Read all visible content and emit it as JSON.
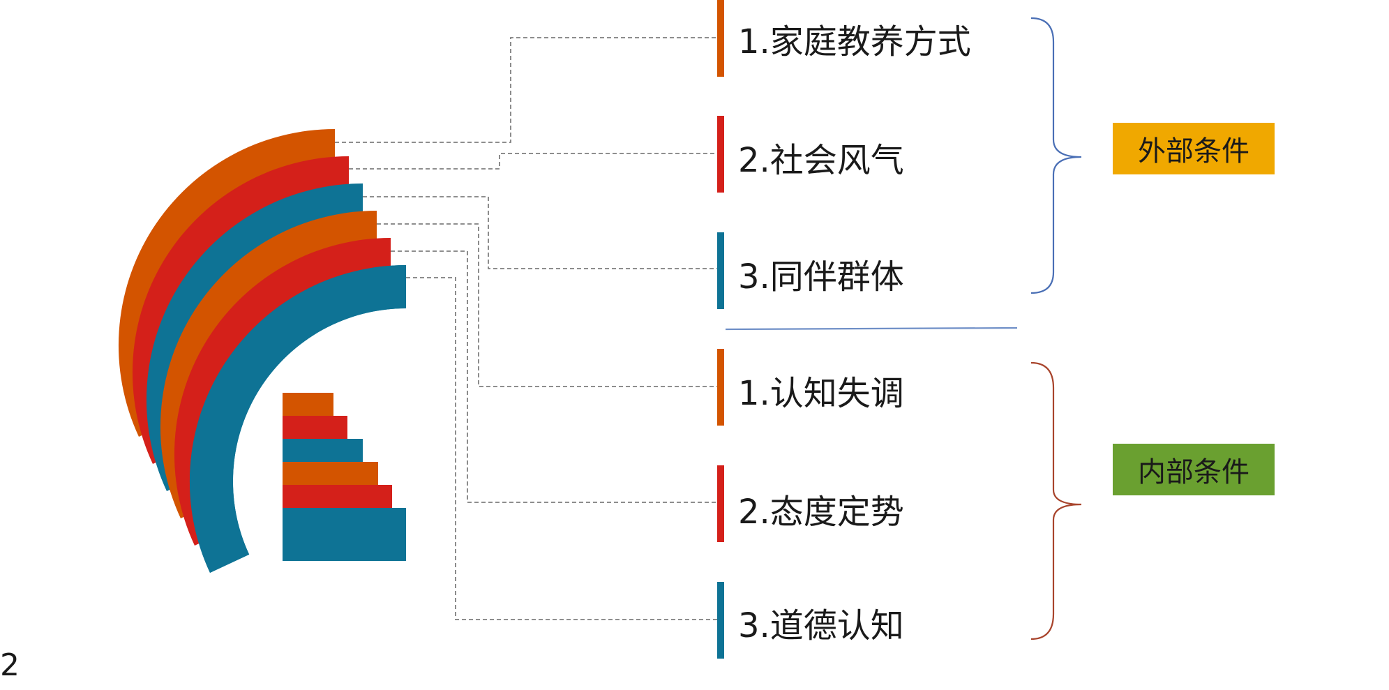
{
  "colors": {
    "orange": "#d35400",
    "red": "#d4201a",
    "blue": "#0e7395",
    "connector": "#7f7f7f",
    "external_bracket": "#4a6fb5",
    "internal_bracket": "#a8442c",
    "divider": "#6f8fc7",
    "external_tag_bg": "#f0a800",
    "internal_tag_bg": "#6aa030"
  },
  "groups": {
    "external": {
      "tag": "外部条件",
      "items": [
        {
          "label": "1.家庭教养方式",
          "color": "orange"
        },
        {
          "label": "2.社会风气",
          "color": "red"
        },
        {
          "label": "3.同伴群体",
          "color": "blue"
        }
      ]
    },
    "internal": {
      "tag": "内部条件",
      "items": [
        {
          "label": "1.认知失调",
          "color": "orange"
        },
        {
          "label": "2.态度定势",
          "color": "red"
        },
        {
          "label": "3.道德认知",
          "color": "blue"
        }
      ]
    }
  },
  "page_number": "2",
  "decor": {
    "arc_sequence": [
      "orange",
      "red",
      "blue",
      "orange",
      "red",
      "blue"
    ]
  }
}
